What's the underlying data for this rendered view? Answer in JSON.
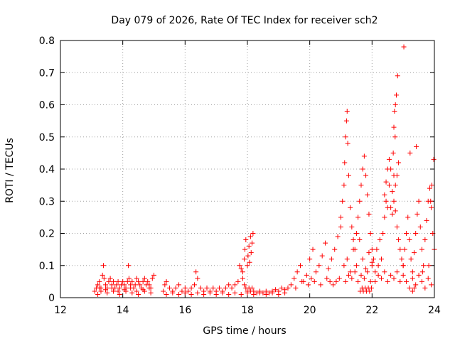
{
  "chart_data": {
    "type": "scatter",
    "title": "Day 079 of 2026, Rate Of TEC Index for receiver sch2",
    "xlabel": "GPS time / hours",
    "ylabel": "ROTI / TECUs",
    "xlim": [
      12,
      24
    ],
    "ylim": [
      0,
      0.8
    ],
    "xticks": [
      12,
      14,
      16,
      18,
      20,
      22,
      24
    ],
    "xtick_labels": [
      "12",
      "14",
      "16",
      "18",
      "20",
      "22",
      "24"
    ],
    "yticks": [
      0,
      0.1,
      0.2,
      0.3,
      0.4,
      0.5,
      0.6,
      0.7,
      0.8
    ],
    "ytick_labels": [
      "0",
      "0.1",
      "0.2",
      "0.3",
      "0.4",
      "0.5",
      "0.6",
      "0.7",
      "0.8"
    ],
    "grid": true,
    "marker": "+",
    "color": "#ff0000",
    "series": [
      {
        "x": [
          13.1,
          13.15,
          13.2,
          13.25,
          13.3,
          13.35,
          13.38,
          13.4,
          13.45,
          13.5,
          13.55,
          13.6,
          13.65,
          13.7,
          13.75,
          13.8,
          13.85,
          13.9,
          13.95,
          14.0,
          14.05,
          14.1,
          14.15,
          14.2,
          14.25,
          14.3,
          14.35,
          14.4,
          14.45,
          14.5,
          14.55,
          14.6,
          14.65,
          14.7,
          14.75,
          14.8,
          14.85,
          14.9,
          14.95,
          15.0,
          13.2,
          13.3,
          13.5,
          13.7,
          13.9,
          14.1,
          14.3,
          14.5,
          14.7,
          14.9,
          13.25,
          13.45,
          13.65,
          13.85,
          14.05,
          14.25,
          14.45,
          14.65,
          14.85,
          14.18,
          15.3,
          15.35,
          15.4,
          15.5,
          15.6,
          15.7,
          15.8,
          15.9,
          16.0,
          16.1,
          16.2,
          16.3,
          16.35,
          16.4,
          16.5,
          16.6,
          16.7,
          16.8,
          16.9,
          17.0,
          17.1,
          17.2,
          17.3,
          17.4,
          17.5,
          17.6,
          17.7,
          17.75,
          17.8,
          17.85,
          17.9,
          17.95,
          18.0,
          18.05,
          18.1,
          18.15,
          18.2,
          18.3,
          18.4,
          18.5,
          18.6,
          18.7,
          18.8,
          18.9,
          19.0,
          19.1,
          19.2,
          19.3,
          15.4,
          15.6,
          15.8,
          16.0,
          16.2,
          16.4,
          16.6,
          16.8,
          17.0,
          17.2,
          17.4,
          17.6,
          17.8,
          18.0,
          18.2,
          18.4,
          18.6,
          18.8,
          19.0,
          19.2,
          17.9,
          17.92,
          17.95,
          18.0,
          18.02,
          18.05,
          18.1,
          18.12,
          18.15,
          18.18,
          17.85,
          18.07,
          19.4,
          19.5,
          19.6,
          19.7,
          19.8,
          19.9,
          20.0,
          20.1,
          20.2,
          20.3,
          20.4,
          20.5,
          20.6,
          20.7,
          20.8,
          20.9,
          21.0,
          19.55,
          19.75,
          19.95,
          20.05,
          20.15,
          20.35,
          20.55,
          20.65,
          20.75,
          20.85,
          20.95,
          21.0,
          21.05,
          21.1,
          21.12,
          21.15,
          21.18,
          21.2,
          21.22,
          21.25,
          21.3,
          21.35,
          21.4,
          21.45,
          21.5,
          21.55,
          21.6,
          21.65,
          21.7,
          21.75,
          21.8,
          21.85,
          21.9,
          21.95,
          22.0,
          21.1,
          21.2,
          21.3,
          21.4,
          21.5,
          21.6,
          21.7,
          21.8,
          21.9,
          22.0,
          21.15,
          21.25,
          21.35,
          21.45,
          21.55,
          21.65,
          21.75,
          21.85,
          21.95,
          21.62,
          21.68,
          21.72,
          21.78,
          21.82,
          21.88,
          21.92,
          21.98,
          22.0,
          22.05,
          22.1,
          22.15,
          22.2,
          22.25,
          22.3,
          22.35,
          22.4,
          22.45,
          22.5,
          22.55,
          22.6,
          22.65,
          22.7,
          22.75,
          22.8,
          22.85,
          22.9,
          22.95,
          23.0,
          22.1,
          22.2,
          22.3,
          22.4,
          22.5,
          22.6,
          22.7,
          22.8,
          22.9,
          23.0,
          22.4,
          22.45,
          22.5,
          22.55,
          22.6,
          22.65,
          22.7,
          22.75,
          22.8,
          22.85,
          22.7,
          22.72,
          22.75,
          22.78,
          22.82,
          22.68,
          22.74,
          23.0,
          23.05,
          23.1,
          23.15,
          23.2,
          23.25,
          23.3,
          23.35,
          23.4,
          23.45,
          23.5,
          23.55,
          23.6,
          23.65,
          23.7,
          23.75,
          23.8,
          23.85,
          23.9,
          23.95,
          24.0,
          23.1,
          23.2,
          23.3,
          23.4,
          23.5,
          23.6,
          23.7,
          23.8,
          23.9,
          23.02,
          23.22,
          23.42,
          23.62,
          23.82,
          23.92,
          23.98,
          23.88,
          23.3,
          23.35
        ],
        "y": [
          0.02,
          0.03,
          0.04,
          0.05,
          0.03,
          0.07,
          0.1,
          0.06,
          0.04,
          0.03,
          0.05,
          0.06,
          0.04,
          0.05,
          0.03,
          0.04,
          0.05,
          0.03,
          0.04,
          0.05,
          0.04,
          0.03,
          0.05,
          0.06,
          0.04,
          0.05,
          0.03,
          0.04,
          0.06,
          0.05,
          0.04,
          0.03,
          0.05,
          0.06,
          0.04,
          0.05,
          0.04,
          0.03,
          0.06,
          0.07,
          0.01,
          0.02,
          0.015,
          0.02,
          0.01,
          0.02,
          0.015,
          0.01,
          0.02,
          0.015,
          0.03,
          0.025,
          0.03,
          0.02,
          0.025,
          0.03,
          0.02,
          0.025,
          0.03,
          0.1,
          0.02,
          0.04,
          0.05,
          0.03,
          0.02,
          0.03,
          0.04,
          0.02,
          0.03,
          0.02,
          0.03,
          0.04,
          0.08,
          0.06,
          0.03,
          0.02,
          0.03,
          0.02,
          0.03,
          0.02,
          0.03,
          0.02,
          0.03,
          0.04,
          0.03,
          0.04,
          0.05,
          0.1,
          0.09,
          0.06,
          0.04,
          0.03,
          0.02,
          0.03,
          0.02,
          0.03,
          0.02,
          0.015,
          0.02,
          0.015,
          0.02,
          0.015,
          0.02,
          0.025,
          0.02,
          0.03,
          0.025,
          0.03,
          0.01,
          0.015,
          0.01,
          0.015,
          0.01,
          0.015,
          0.01,
          0.015,
          0.01,
          0.015,
          0.01,
          0.015,
          0.01,
          0.015,
          0.01,
          0.015,
          0.01,
          0.015,
          0.01,
          0.015,
          0.12,
          0.15,
          0.18,
          0.1,
          0.13,
          0.16,
          0.19,
          0.14,
          0.17,
          0.2,
          0.08,
          0.11,
          0.04,
          0.06,
          0.08,
          0.1,
          0.05,
          0.07,
          0.12,
          0.15,
          0.08,
          0.1,
          0.13,
          0.17,
          0.09,
          0.12,
          0.15,
          0.19,
          0.22,
          0.03,
          0.05,
          0.04,
          0.06,
          0.05,
          0.04,
          0.06,
          0.05,
          0.04,
          0.05,
          0.06,
          0.25,
          0.3,
          0.35,
          0.42,
          0.5,
          0.55,
          0.58,
          0.48,
          0.38,
          0.28,
          0.22,
          0.18,
          0.15,
          0.2,
          0.25,
          0.3,
          0.35,
          0.4,
          0.44,
          0.38,
          0.32,
          0.26,
          0.2,
          0.15,
          0.1,
          0.12,
          0.08,
          0.15,
          0.1,
          0.18,
          0.12,
          0.09,
          0.14,
          0.11,
          0.05,
          0.07,
          0.06,
          0.08,
          0.05,
          0.07,
          0.06,
          0.08,
          0.05,
          0.02,
          0.03,
          0.02,
          0.03,
          0.02,
          0.03,
          0.02,
          0.03,
          0.1,
          0.12,
          0.08,
          0.15,
          0.1,
          0.18,
          0.12,
          0.2,
          0.25,
          0.3,
          0.28,
          0.35,
          0.4,
          0.33,
          0.38,
          0.27,
          0.22,
          0.18,
          0.15,
          0.12,
          0.1,
          0.05,
          0.07,
          0.06,
          0.08,
          0.05,
          0.07,
          0.06,
          0.08,
          0.05,
          0.07,
          0.32,
          0.36,
          0.4,
          0.43,
          0.28,
          0.26,
          0.3,
          0.35,
          0.38,
          0.42,
          0.53,
          0.58,
          0.6,
          0.63,
          0.69,
          0.45,
          0.5,
          0.1,
          0.15,
          0.2,
          0.25,
          0.18,
          0.12,
          0.08,
          0.14,
          0.2,
          0.26,
          0.3,
          0.22,
          0.15,
          0.1,
          0.18,
          0.24,
          0.3,
          0.34,
          0.28,
          0.2,
          0.15,
          0.05,
          0.03,
          0.06,
          0.04,
          0.07,
          0.05,
          0.03,
          0.06,
          0.04,
          0.78,
          0.45,
          0.47,
          0.08,
          0.1,
          0.35,
          0.43,
          0.3,
          0.02,
          0.03
        ]
      }
    ]
  }
}
